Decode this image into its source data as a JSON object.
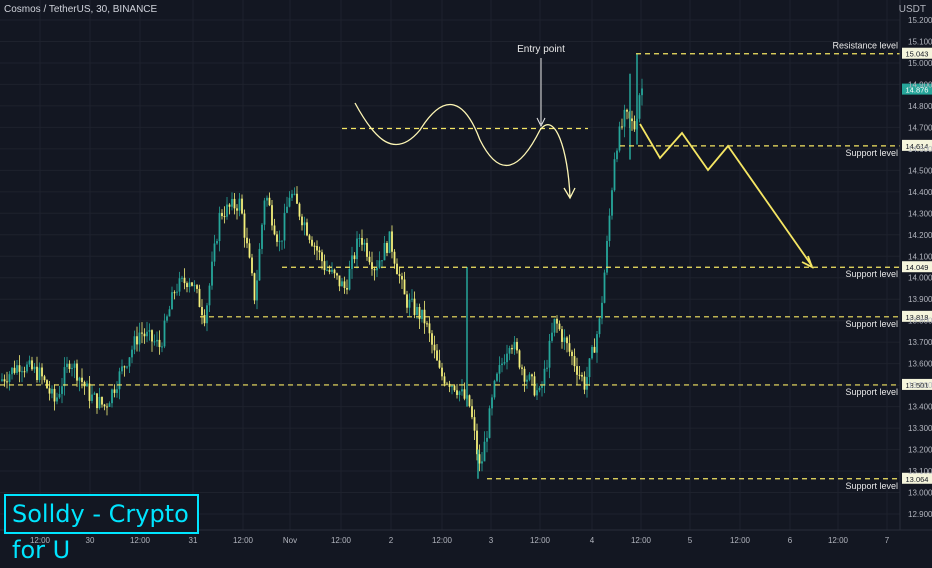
{
  "header": {
    "title": "Cosmos / TetherUS, 30, BINANCE"
  },
  "watermark": {
    "text": "Solldy - Crypto for U"
  },
  "colors": {
    "background": "#131722",
    "bull": "#26a69a",
    "bear": "#f4f07a",
    "annotation": "#f5e663",
    "price_box": "#26a69a"
  },
  "chart_data": {
    "type": "candlestick",
    "yunit": "USDT",
    "ylim": [
      12.82,
      15.25
    ],
    "yticks": [
      "15.200",
      "15.100",
      "15.000",
      "14.900",
      "14.800",
      "14.700",
      "14.600",
      "14.500",
      "14.400",
      "14.300",
      "14.200",
      "14.100",
      "14.000",
      "13.900",
      "13.800",
      "13.700",
      "13.600",
      "13.500",
      "13.400",
      "13.300",
      "13.200",
      "13.100",
      "13.000",
      "12.900"
    ],
    "xticks": [
      "12:00",
      "30",
      "12:00",
      "31",
      "12:00",
      "Nov",
      "12:00",
      "2",
      "12:00",
      "3",
      "12:00",
      "4",
      "12:00",
      "5",
      "12:00",
      "6",
      "12:00",
      "7"
    ],
    "current_price": "14.876",
    "levels": [
      {
        "label": "Resistance level",
        "value": "15.043"
      },
      {
        "label": "Support level",
        "value": "14.614"
      },
      {
        "label": "Support level",
        "value": "14.049"
      },
      {
        "label": "Support level",
        "value": "13.818"
      },
      {
        "label": "Support level",
        "value": "13.501"
      },
      {
        "label": "Support level",
        "value": "13.064"
      }
    ],
    "annotations": [
      {
        "text": "Entry point"
      }
    ]
  }
}
